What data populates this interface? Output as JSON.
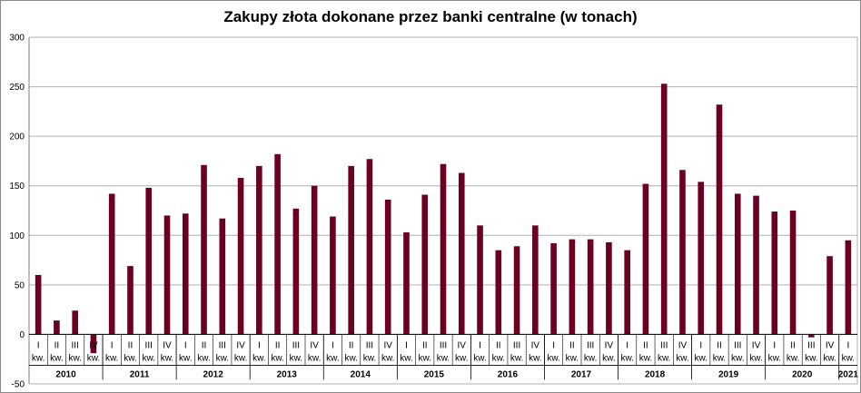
{
  "chart_data": {
    "type": "bar",
    "title": "Zakupy złota dokonane przez banki centralne (w tonach)",
    "xlabel": "",
    "ylabel": "",
    "ylim": [
      -50,
      300
    ],
    "yticks": [
      -50,
      0,
      50,
      100,
      150,
      200,
      250,
      300
    ],
    "grid": true,
    "bar_color": "#6b0020",
    "quarter_suffix": "kw.",
    "years": [
      "2010",
      "2011",
      "2012",
      "2013",
      "2014",
      "2015",
      "2016",
      "2017",
      "2018",
      "2019",
      "2020",
      "2021"
    ],
    "categories": [
      {
        "year": "2010",
        "quarter": "I"
      },
      {
        "year": "2010",
        "quarter": "II"
      },
      {
        "year": "2010",
        "quarter": "III"
      },
      {
        "year": "2010",
        "quarter": "IV"
      },
      {
        "year": "2011",
        "quarter": "I"
      },
      {
        "year": "2011",
        "quarter": "II"
      },
      {
        "year": "2011",
        "quarter": "III"
      },
      {
        "year": "2011",
        "quarter": "IV"
      },
      {
        "year": "2012",
        "quarter": "I"
      },
      {
        "year": "2012",
        "quarter": "II"
      },
      {
        "year": "2012",
        "quarter": "III"
      },
      {
        "year": "2012",
        "quarter": "IV"
      },
      {
        "year": "2013",
        "quarter": "I"
      },
      {
        "year": "2013",
        "quarter": "II"
      },
      {
        "year": "2013",
        "quarter": "III"
      },
      {
        "year": "2013",
        "quarter": "IV"
      },
      {
        "year": "2014",
        "quarter": "I"
      },
      {
        "year": "2014",
        "quarter": "II"
      },
      {
        "year": "2014",
        "quarter": "III"
      },
      {
        "year": "2014",
        "quarter": "IV"
      },
      {
        "year": "2015",
        "quarter": "I"
      },
      {
        "year": "2015",
        "quarter": "II"
      },
      {
        "year": "2015",
        "quarter": "III"
      },
      {
        "year": "2015",
        "quarter": "IV"
      },
      {
        "year": "2016",
        "quarter": "I"
      },
      {
        "year": "2016",
        "quarter": "II"
      },
      {
        "year": "2016",
        "quarter": "III"
      },
      {
        "year": "2016",
        "quarter": "IV"
      },
      {
        "year": "2017",
        "quarter": "I"
      },
      {
        "year": "2017",
        "quarter": "II"
      },
      {
        "year": "2017",
        "quarter": "III"
      },
      {
        "year": "2017",
        "quarter": "IV"
      },
      {
        "year": "2018",
        "quarter": "I"
      },
      {
        "year": "2018",
        "quarter": "II"
      },
      {
        "year": "2018",
        "quarter": "III"
      },
      {
        "year": "2018",
        "quarter": "IV"
      },
      {
        "year": "2019",
        "quarter": "I"
      },
      {
        "year": "2019",
        "quarter": "II"
      },
      {
        "year": "2019",
        "quarter": "III"
      },
      {
        "year": "2019",
        "quarter": "IV"
      },
      {
        "year": "2020",
        "quarter": "I"
      },
      {
        "year": "2020",
        "quarter": "II"
      },
      {
        "year": "2020",
        "quarter": "III"
      },
      {
        "year": "2020",
        "quarter": "IV"
      },
      {
        "year": "2021",
        "quarter": "I"
      }
    ],
    "values": [
      60,
      14,
      24,
      -19,
      142,
      69,
      148,
      120,
      122,
      171,
      117,
      158,
      170,
      182,
      127,
      150,
      119,
      170,
      177,
      136,
      103,
      141,
      172,
      163,
      110,
      85,
      89,
      110,
      92,
      96,
      96,
      93,
      85,
      152,
      253,
      166,
      154,
      232,
      142,
      140,
      124,
      125,
      -3,
      79,
      95
    ]
  }
}
